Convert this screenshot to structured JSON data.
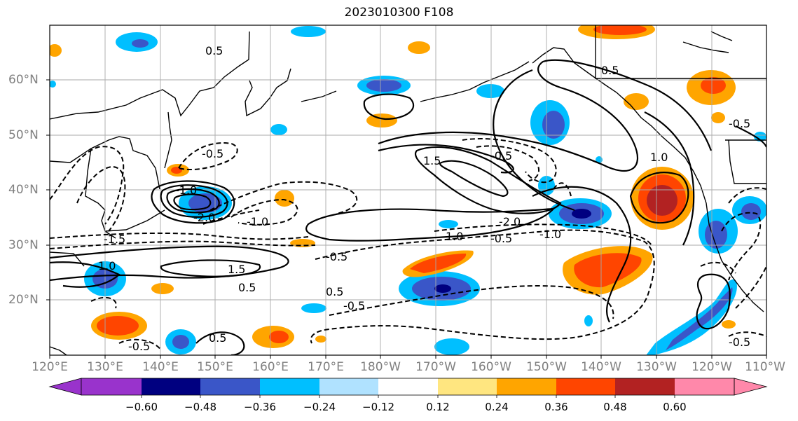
{
  "title": "2023010300 F108",
  "lat_labels": [
    "60°N",
    "50°N",
    "40°N",
    "30°N",
    "20°N"
  ],
  "lon_labels": [
    "120°E",
    "130°E",
    "140°E",
    "150°E",
    "160°E",
    "170°E",
    "180°W",
    "170°W",
    "160°W",
    "150°W",
    "140°W",
    "130°W",
    "120°W",
    "110°W"
  ],
  "colorbar": {
    "tick_labels": [
      "−0.60",
      "−0.48",
      "−0.36",
      "−0.24",
      "−0.12",
      "0.12",
      "0.24",
      "0.36",
      "0.48",
      "0.60"
    ],
    "colors": [
      "#9933cc",
      "#000080",
      "#3a56c8",
      "#00bfff",
      "#b0e2ff",
      "#ffffff",
      "#ffe680",
      "#ffa500",
      "#ff4500",
      "#b22222",
      "#ff88aa"
    ]
  },
  "contour_labels": [
    "0.5",
    "-0.5",
    "-1.0",
    "-1.5",
    "-2.0",
    "1.0",
    "1.5",
    "0.5",
    "-0.5",
    "-1.0",
    "-2.0",
    "-0.5",
    "0.5",
    "-0.5",
    "1.0",
    "-0.5",
    "0.5",
    "-0.5",
    "0.5",
    "-0.5",
    "1.0",
    "-1.0",
    "-0.5",
    "1.5"
  ],
  "map": {
    "lat_range": [
      10,
      70
    ],
    "lon_range": [
      "120°E",
      "110°W"
    ]
  }
}
